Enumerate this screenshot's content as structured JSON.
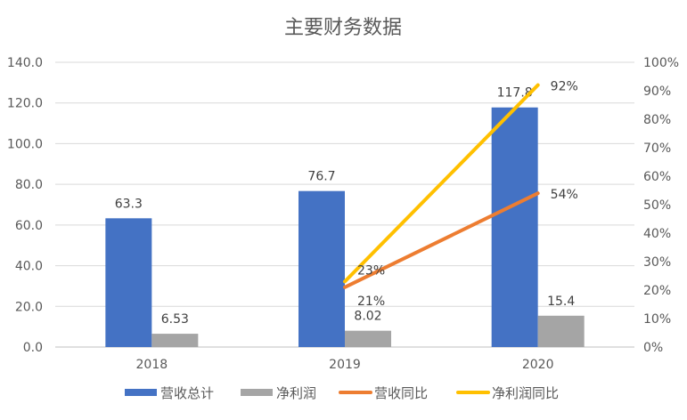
{
  "chart_data": {
    "type": "bar+line",
    "title": "主要财务数据",
    "categories": [
      "2018",
      "2019",
      "2020"
    ],
    "ylim": [
      0,
      140
    ],
    "yticks": [
      "0.0",
      "20.0",
      "40.0",
      "60.0",
      "80.0",
      "100.0",
      "120.0",
      "140.0"
    ],
    "y2lim": [
      0,
      100
    ],
    "y2ticks": [
      "0%",
      "10%",
      "20%",
      "30%",
      "40%",
      "50%",
      "60%",
      "70%",
      "80%",
      "90%",
      "100%"
    ],
    "grid": true,
    "legend": "bottom",
    "bar_series": [
      {
        "name": "营收总计",
        "color": "#4472C4",
        "values": [
          63.3,
          76.7,
          117.8
        ],
        "labels": [
          "63.3",
          "76.7",
          "117.8"
        ]
      },
      {
        "name": "净利润",
        "color": "#A5A5A5",
        "values": [
          6.53,
          8.02,
          15.4
        ],
        "labels": [
          "6.53",
          "8.02",
          "15.4"
        ]
      }
    ],
    "line_series": [
      {
        "name": "营收同比",
        "color": "#ED7D31",
        "axis": "right",
        "values": [
          null,
          21,
          54
        ],
        "labels": [
          "",
          "21%",
          "54%"
        ]
      },
      {
        "name": "净利润同比",
        "color": "#FFC000",
        "axis": "right",
        "values": [
          null,
          23,
          92
        ],
        "labels": [
          "",
          "23%",
          "92%"
        ]
      }
    ]
  }
}
